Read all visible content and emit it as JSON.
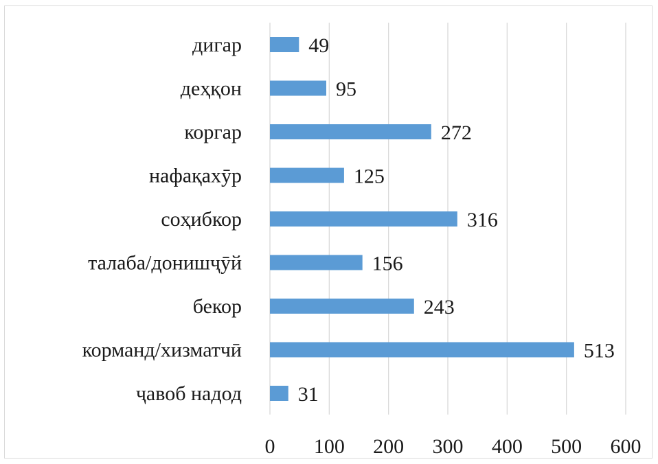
{
  "chart_data": {
    "type": "bar",
    "orientation": "horizontal",
    "categories": [
      "дигар",
      "деҳқон",
      "коргар",
      "нафақахӯр",
      "соҳибкор",
      "талаба/донишҷӯй",
      "бекор",
      "корманд/хизматчӣ",
      "ҷавоб надод"
    ],
    "values": [
      49,
      95,
      272,
      125,
      316,
      156,
      243,
      513,
      31
    ],
    "title": "",
    "xlabel": "",
    "ylabel": "",
    "xlim": [
      0,
      600
    ],
    "xticks": [
      0,
      100,
      200,
      300,
      400,
      500,
      600
    ],
    "grid": "vertical",
    "legend": "none",
    "data_labels": true,
    "bar_color": "#5b9bd5",
    "grid_color": "#d9d9d9"
  }
}
